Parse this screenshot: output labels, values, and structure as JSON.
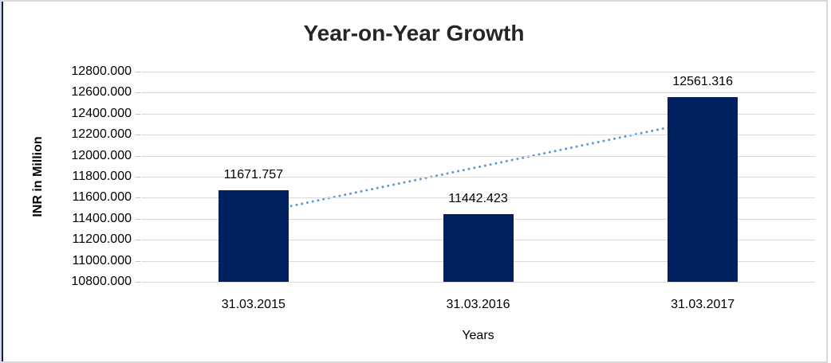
{
  "window": {
    "background": "#ffffff",
    "frame_border_color": "#d9d9d9",
    "left_edge_color": "#0d2050"
  },
  "chart_data": {
    "type": "bar",
    "title": "Year-on-Year Growth",
    "xlabel": "Years",
    "ylabel": "INR in Million",
    "categories": [
      "31.03.2015",
      "31.03.2016",
      "31.03.2017"
    ],
    "values": [
      11671.757,
      11442.423,
      12561.316
    ],
    "data_labels": [
      "11671.757",
      "11442.423",
      "12561.316"
    ],
    "ylim": [
      10800,
      12800
    ],
    "ytick_step": 200,
    "ytick_labels": [
      "10800.000",
      "11000.000",
      "11200.000",
      "11400.000",
      "11600.000",
      "11800.000",
      "12000.000",
      "12200.000",
      "12400.000",
      "12600.000",
      "12800.000"
    ],
    "grid": true,
    "legend": "none",
    "bar_color": "#002060",
    "gridline_color": "#d9d9d9",
    "trendline": {
      "type": "linear",
      "style": "dotted",
      "color": "#5b9bd5"
    }
  }
}
